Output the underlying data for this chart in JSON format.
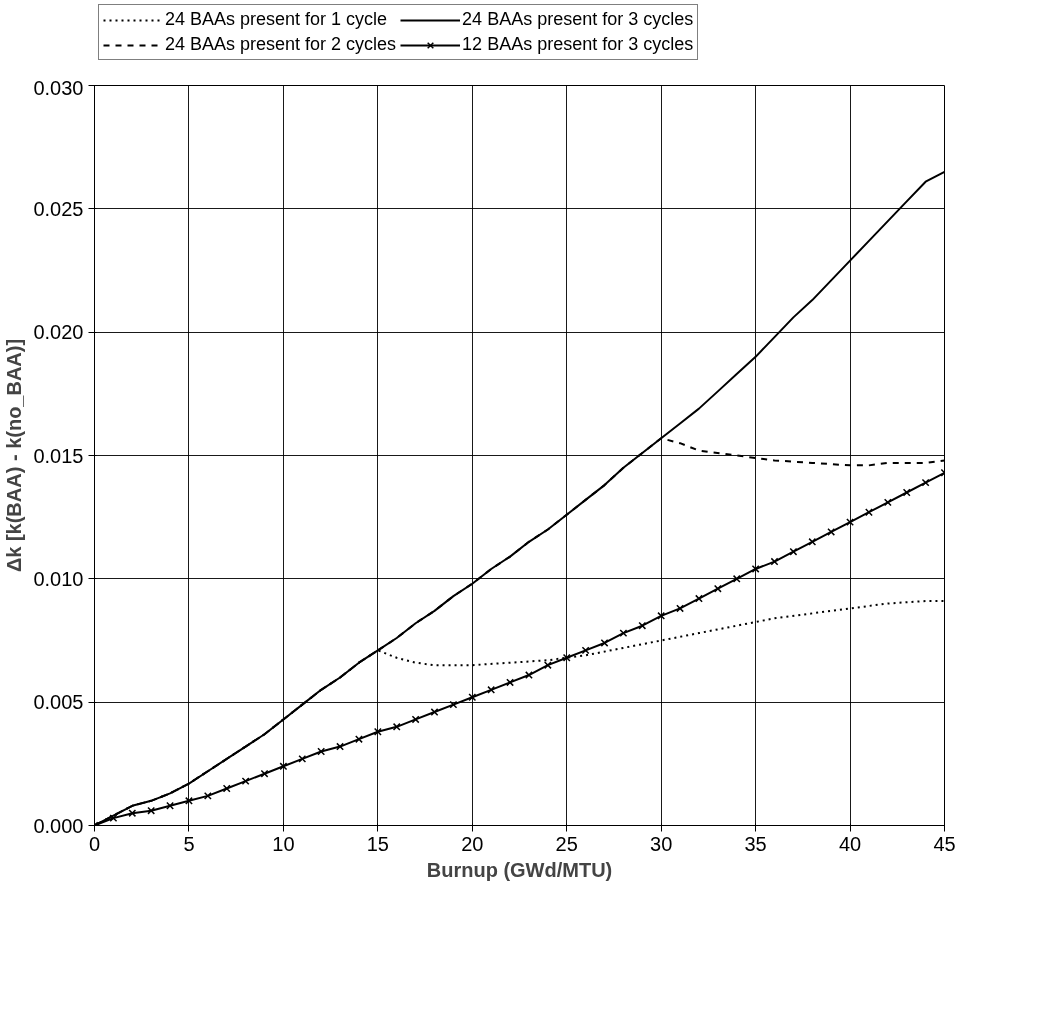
{
  "chart_data": {
    "type": "line",
    "xlabel": "Burnup (GWd/MTU)",
    "ylabel": "Δk [k(BAA) - k(no_BAA)]",
    "xlim": [
      0,
      45
    ],
    "xticks": [
      0,
      5,
      10,
      15,
      20,
      25,
      30,
      35,
      40,
      45
    ],
    "ylim": [
      0,
      0.03
    ],
    "yticks": [
      {
        "value": 0,
        "label": "0.000"
      },
      {
        "value": 0.005,
        "label": "0.005"
      },
      {
        "value": 0.01,
        "label": "0.010"
      },
      {
        "value": 0.015,
        "label": "0.015"
      },
      {
        "value": 0.02,
        "label": "0.020"
      },
      {
        "value": 0.025,
        "label": "0.025"
      },
      {
        "value": 0.03,
        "label": "0.030"
      }
    ],
    "grid": true,
    "legend": "top",
    "series": [
      {
        "name": "24 BAAs present for 1 cycle",
        "color": "#000000",
        "line_style": "dotted",
        "marker": "none",
        "x": [
          0,
          1,
          2,
          3,
          4,
          5,
          6,
          7,
          8,
          9,
          10,
          11,
          12,
          13,
          14,
          15,
          16,
          17,
          18,
          19,
          20,
          22,
          24,
          25,
          26,
          28,
          30,
          32,
          34,
          36,
          38,
          40,
          42,
          44,
          45
        ],
        "values": [
          0,
          0.0004,
          0.0008,
          0.001,
          0.0013,
          0.0017,
          0.0022,
          0.0027,
          0.0032,
          0.0037,
          0.0043,
          0.0049,
          0.0055,
          0.006,
          0.0066,
          0.0071,
          0.0068,
          0.0066,
          0.0065,
          0.0065,
          0.0065,
          0.0066,
          0.0067,
          0.0068,
          0.0069,
          0.0072,
          0.0075,
          0.0078,
          0.0081,
          0.0084,
          0.0086,
          0.0088,
          0.009,
          0.0091,
          0.0091
        ]
      },
      {
        "name": "24 BAAs present for 2 cycles",
        "color": "#000000",
        "line_style": "dashed",
        "marker": "none",
        "x": [
          0,
          1,
          2,
          3,
          4,
          5,
          6,
          7,
          8,
          9,
          10,
          11,
          12,
          13,
          14,
          15,
          16,
          17,
          18,
          19,
          20,
          21,
          22,
          23,
          24,
          25,
          26,
          27,
          28,
          29,
          30,
          31,
          32,
          34,
          36,
          38,
          40,
          41,
          42,
          44,
          45
        ],
        "values": [
          0,
          0.0004,
          0.0008,
          0.001,
          0.0013,
          0.0017,
          0.0022,
          0.0027,
          0.0032,
          0.0037,
          0.0043,
          0.0049,
          0.0055,
          0.006,
          0.0066,
          0.0071,
          0.0076,
          0.0082,
          0.0087,
          0.0093,
          0.0098,
          0.0104,
          0.0109,
          0.0115,
          0.012,
          0.0126,
          0.0132,
          0.0138,
          0.0145,
          0.0151,
          0.0157,
          0.0155,
          0.0152,
          0.015,
          0.0148,
          0.0147,
          0.0146,
          0.0146,
          0.0147,
          0.0147,
          0.0148
        ]
      },
      {
        "name": "24 BAAs present for 3 cycles",
        "color": "#000000",
        "line_style": "solid",
        "marker": "none",
        "x": [
          0,
          1,
          2,
          3,
          4,
          5,
          6,
          7,
          8,
          9,
          10,
          11,
          12,
          13,
          14,
          15,
          16,
          17,
          18,
          19,
          20,
          21,
          22,
          23,
          24,
          25,
          26,
          27,
          28,
          29,
          30,
          31,
          32,
          33,
          34,
          35,
          36,
          37,
          38,
          39,
          40,
          41,
          42,
          43,
          44,
          45
        ],
        "values": [
          0,
          0.0004,
          0.0008,
          0.001,
          0.0013,
          0.0017,
          0.0022,
          0.0027,
          0.0032,
          0.0037,
          0.0043,
          0.0049,
          0.0055,
          0.006,
          0.0066,
          0.0071,
          0.0076,
          0.0082,
          0.0087,
          0.0093,
          0.0098,
          0.0104,
          0.0109,
          0.0115,
          0.012,
          0.0126,
          0.0132,
          0.0138,
          0.0145,
          0.0151,
          0.0157,
          0.0163,
          0.0169,
          0.0176,
          0.0183,
          0.019,
          0.0198,
          0.0206,
          0.0213,
          0.0221,
          0.0229,
          0.0237,
          0.0245,
          0.0253,
          0.0261,
          0.0265
        ]
      },
      {
        "name": "12 BAAs present for 3 cycles",
        "color": "#000000",
        "line_style": "solid",
        "marker": "cross",
        "x": [
          0,
          1,
          2,
          3,
          4,
          5,
          6,
          7,
          8,
          9,
          10,
          11,
          12,
          13,
          14,
          15,
          16,
          17,
          18,
          19,
          20,
          21,
          22,
          23,
          24,
          25,
          26,
          27,
          28,
          29,
          30,
          31,
          32,
          33,
          34,
          35,
          36,
          37,
          38,
          39,
          40,
          41,
          42,
          43,
          44,
          45
        ],
        "values": [
          0,
          0.0003,
          0.0005,
          0.0006,
          0.0008,
          0.001,
          0.0012,
          0.0015,
          0.0018,
          0.0021,
          0.0024,
          0.0027,
          0.003,
          0.0032,
          0.0035,
          0.0038,
          0.004,
          0.0043,
          0.0046,
          0.0049,
          0.0052,
          0.0055,
          0.0058,
          0.0061,
          0.0065,
          0.0068,
          0.0071,
          0.0074,
          0.0078,
          0.0081,
          0.0085,
          0.0088,
          0.0092,
          0.0096,
          0.01,
          0.0104,
          0.0107,
          0.0111,
          0.0115,
          0.0119,
          0.0123,
          0.0127,
          0.0131,
          0.0135,
          0.0139,
          0.0143
        ]
      }
    ]
  }
}
